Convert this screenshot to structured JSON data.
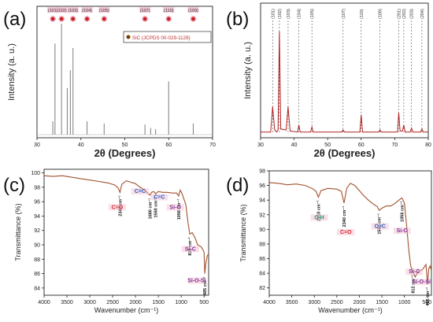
{
  "chart_data": [
    {
      "panel": "(a)",
      "type": "bar",
      "xlabel": "2θ (Degrees)",
      "ylabel": "Intensity (a. u.)",
      "xlim": [
        30,
        70
      ],
      "xticks": [
        "30",
        "40",
        "50",
        "60",
        "70"
      ],
      "colors": {
        "pattern": "#888888",
        "marker": "#cc2222",
        "label_bg": "#f4b9cd"
      },
      "legend": {
        "text": "SiC (JCPDS 00-029-1128)",
        "position": "top-right"
      },
      "peak_labels": [
        {
          "hkl": "(101)",
          "x": 33.6
        },
        {
          "hkl": "(102)",
          "x": 35.6
        },
        {
          "hkl": "(103)",
          "x": 38.2
        },
        {
          "hkl": "(104)",
          "x": 41.4
        },
        {
          "hkl": "(105)",
          "x": 45.3
        },
        {
          "hkl": "(107)",
          "x": 54.6
        },
        {
          "hkl": "(110)",
          "x": 60.0
        },
        {
          "hkl": "(109)",
          "x": 65.6
        }
      ],
      "series": [
        {
          "x": [
            33.6,
            34.1,
            35.6,
            36.9,
            37.6,
            38.2,
            41.4,
            45.3,
            54.6,
            55.9,
            57.0,
            60.0,
            65.6
          ],
          "values": [
            0.12,
            0.82,
            1.0,
            0.42,
            0.58,
            0.78,
            0.12,
            0.1,
            0.09,
            0.06,
            0.05,
            0.48,
            0.1
          ]
        }
      ]
    },
    {
      "panel": "(b)",
      "type": "line",
      "xlabel": "2θ (Degrees)",
      "ylabel": "Intensity (a. u.)",
      "xlim": [
        30,
        80
      ],
      "xticks": [
        "30",
        "40",
        "50",
        "60",
        "70",
        "80"
      ],
      "colors": {
        "line": "#b22222",
        "dash": "#555555"
      },
      "peak_labels": [
        {
          "hkl": "(101)",
          "x": 33.6
        },
        {
          "hkl": "(102)",
          "x": 35.6
        },
        {
          "hkl": "(103)",
          "x": 38.2
        },
        {
          "hkl": "(104)",
          "x": 41.4
        },
        {
          "hkl": "(105)",
          "x": 45.3
        },
        {
          "hkl": "(107)",
          "x": 54.6
        },
        {
          "hkl": "(110)",
          "x": 60.0
        },
        {
          "hkl": "(109)",
          "x": 65.6
        },
        {
          "hkl": "(201)",
          "x": 71.2
        },
        {
          "hkl": "(202)",
          "x": 72.7
        },
        {
          "hkl": "(203)",
          "x": 75.0
        },
        {
          "hkl": "(204)",
          "x": 78.1
        }
      ],
      "series": [
        {
          "x": [
            30,
            33.0,
            33.6,
            34.2,
            34.8,
            35.2,
            35.6,
            36.0,
            37.6,
            38.2,
            38.8,
            41.0,
            41.4,
            41.8,
            44.9,
            45.3,
            45.7,
            54.2,
            54.6,
            55.0,
            59.6,
            60.0,
            60.4,
            65.2,
            65.6,
            66.0,
            70.8,
            71.2,
            71.6,
            72.3,
            72.7,
            73.1,
            74.6,
            75.0,
            75.4,
            77.7,
            78.1,
            78.5,
            80
          ],
          "values": [
            0.01,
            0.01,
            0.26,
            0.03,
            0.01,
            0.03,
            1.0,
            0.04,
            0.03,
            0.26,
            0.02,
            0.01,
            0.08,
            0.01,
            0.01,
            0.06,
            0.01,
            0.01,
            0.03,
            0.01,
            0.01,
            0.18,
            0.01,
            0.01,
            0.03,
            0.01,
            0.01,
            0.2,
            0.02,
            0.02,
            0.08,
            0.01,
            0.01,
            0.05,
            0.01,
            0.01,
            0.04,
            0.01,
            0.01
          ]
        }
      ]
    },
    {
      "panel": "(c)",
      "type": "line",
      "xlabel": "Wavenumber (cm⁻¹)",
      "ylabel": "Transmittance (%)",
      "xlim": [
        4000,
        400
      ],
      "ylim": [
        83,
        100.5
      ],
      "xticks": [
        "4000",
        "3500",
        "3000",
        "2500",
        "2000",
        "1500",
        "1000",
        "500"
      ],
      "yticks": [
        "84",
        "86",
        "88",
        "90",
        "92",
        "94",
        "96",
        "98",
        "100"
      ],
      "colors": {
        "line": "#a0522d"
      },
      "annotations": [
        {
          "text": "2340 cm⁻¹",
          "x": 2340
        },
        {
          "text": "1680 cm⁻¹",
          "x": 1680
        },
        {
          "text": "1560 cm⁻¹",
          "x": 1560
        },
        {
          "text": "1056 cm⁻¹",
          "x": 1056
        },
        {
          "text": "812 cm⁻¹",
          "x": 812
        },
        {
          "text": "485 cm⁻¹",
          "x": 485
        }
      ],
      "bond_labels": [
        {
          "text": "C=O",
          "x": 2400,
          "y": 95.0,
          "color": "#d62728"
        },
        {
          "text": "C=C",
          "x": 1900,
          "y": 97.2,
          "color": "#1f5fbf"
        },
        {
          "text": "C=C",
          "x": 1480,
          "y": 96.4,
          "color": "#1f5fbf"
        },
        {
          "text": "Si-O",
          "x": 1130,
          "y": 95.0,
          "color": "#7b3294"
        },
        {
          "text": "Si-C",
          "x": 800,
          "y": 89.2,
          "color": "#7b3294"
        },
        {
          "text": "Si-O-Si",
          "x": 660,
          "y": 84.8,
          "color": "#7b3294"
        }
      ],
      "series": [
        {
          "x": [
            4000,
            3800,
            3600,
            3400,
            3200,
            3000,
            2800,
            2600,
            2450,
            2380,
            2340,
            2300,
            2200,
            2100,
            2000,
            1900,
            1800,
            1700,
            1680,
            1650,
            1600,
            1560,
            1500,
            1400,
            1300,
            1200,
            1100,
            1056,
            1020,
            980,
            900,
            850,
            812,
            760,
            700,
            640,
            560,
            500,
            485,
            460,
            430,
            400
          ],
          "values": [
            99.6,
            99.5,
            99.6,
            99.4,
            99.2,
            99.0,
            98.8,
            98.6,
            98.3,
            97.9,
            97.3,
            98.4,
            98.9,
            98.7,
            98.5,
            98.0,
            97.6,
            97.0,
            96.9,
            97.3,
            97.4,
            97.1,
            97.4,
            97.3,
            97.3,
            97.2,
            97.2,
            96.8,
            97.6,
            97.1,
            95.6,
            93.0,
            91.5,
            91.7,
            91.0,
            90.0,
            89.7,
            89.0,
            86.0,
            87.5,
            88.5,
            88.7
          ]
        }
      ]
    },
    {
      "panel": "(d)",
      "type": "line",
      "xlabel": "Wavenumber (cm⁻¹)",
      "ylabel": "Transmittance (%)",
      "xlim": [
        4000,
        400
      ],
      "ylim": [
        81,
        98
      ],
      "xticks": [
        "4000",
        "3500",
        "3000",
        "2500",
        "2000",
        "1500",
        "1000",
        "500"
      ],
      "yticks": [
        "82",
        "84",
        "86",
        "88",
        "90",
        "92",
        "94",
        "96",
        "98"
      ],
      "colors": {
        "line": "#a0522d"
      },
      "annotations": [
        {
          "text": "2910 cm⁻¹",
          "x": 2910
        },
        {
          "text": "2340 cm⁻¹",
          "x": 2340
        },
        {
          "text": "1560 cm⁻¹",
          "x": 1560
        },
        {
          "text": "1056 cm⁻¹",
          "x": 1056
        },
        {
          "text": "812 cm⁻¹",
          "x": 812
        },
        {
          "text": "485 cm⁻¹",
          "x": 485
        }
      ],
      "bond_labels": [
        {
          "text": "C-H",
          "x": 2890,
          "y": 91.4,
          "color": "#1a9a7a"
        },
        {
          "text": "C=O",
          "x": 2300,
          "y": 89.4,
          "color": "#d62728"
        },
        {
          "text": "C=C",
          "x": 1540,
          "y": 90.2,
          "color": "#1f5fbf"
        },
        {
          "text": "Si-O",
          "x": 1050,
          "y": 89.6,
          "color": "#7b3294"
        },
        {
          "text": "Si-C",
          "x": 780,
          "y": 84.0,
          "color": "#7b3294"
        },
        {
          "text": "Si-O-Si",
          "x": 620,
          "y": 82.6,
          "color": "#7b3294"
        }
      ],
      "series": [
        {
          "x": [
            4000,
            3800,
            3600,
            3400,
            3200,
            3050,
            2960,
            2910,
            2850,
            2700,
            2500,
            2400,
            2340,
            2280,
            2200,
            2100,
            2000,
            1900,
            1800,
            1700,
            1600,
            1560,
            1500,
            1400,
            1300,
            1200,
            1100,
            1056,
            1000,
            950,
            900,
            860,
            812,
            760,
            700,
            600,
            520,
            485,
            460,
            430,
            400
          ],
          "values": [
            96.4,
            96.3,
            96.1,
            96.2,
            96.0,
            95.6,
            95.2,
            94.4,
            95.3,
            95.6,
            95.5,
            95.2,
            93.6,
            95.6,
            96.3,
            96.0,
            95.3,
            94.6,
            94.0,
            93.5,
            93.1,
            92.6,
            92.9,
            93.2,
            93.2,
            93.6,
            94.1,
            94.3,
            93.6,
            90.5,
            87.0,
            85.0,
            84.2,
            83.5,
            84.2,
            84.5,
            85.2,
            82.5,
            84.6,
            85.0,
            84.4
          ]
        }
      ]
    }
  ]
}
